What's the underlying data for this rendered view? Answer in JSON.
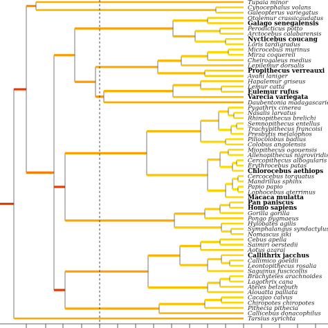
{
  "tree": {
    "tips": [
      {
        "label": "Tupaia minor",
        "bold": false
      },
      {
        "label": "Cynocephalus volans",
        "bold": false
      },
      {
        "label": "Galeopterus variegatus",
        "bold": false
      },
      {
        "label": "Otolemur crassicaudatus",
        "bold": false
      },
      {
        "label": "Galago senegalensis",
        "bold": true
      },
      {
        "label": "Perodicticus potto",
        "bold": false
      },
      {
        "label": "Arctocebus calabarensis",
        "bold": false
      },
      {
        "label": "Nycticebus coucang",
        "bold": true
      },
      {
        "label": "Loris tardigradus",
        "bold": false
      },
      {
        "label": "Microcebus murinus",
        "bold": false
      },
      {
        "label": "Mirza coquereli",
        "bold": false
      },
      {
        "label": "Cheirogaleus medius",
        "bold": false
      },
      {
        "label": "Lepilemur dorsalis",
        "bold": false
      },
      {
        "label": "Propithecus verreauxi",
        "bold": true
      },
      {
        "label": "Avahi laniger",
        "bold": false
      },
      {
        "label": "Hapalemur griseus",
        "bold": false
      },
      {
        "label": "Lemur catta",
        "bold": false
      },
      {
        "label": "Eulemur rufus",
        "bold": true
      },
      {
        "label": "Varecia variegata",
        "bold": true
      },
      {
        "label": "Daubentonia madagascariensis",
        "bold": false
      },
      {
        "label": "Pygathrix cinerea",
        "bold": false
      },
      {
        "label": "Nasalis larvatus",
        "bold": false
      },
      {
        "label": "Rhinopithecus brelichi",
        "bold": false
      },
      {
        "label": "Semnopithecus entellus",
        "bold": false
      },
      {
        "label": "Trachypithecus francoisi",
        "bold": false
      },
      {
        "label": "Presbytis melalophos",
        "bold": false
      },
      {
        "label": "Piliocolobus badius",
        "bold": false
      },
      {
        "label": "Colobus angolensis",
        "bold": false
      },
      {
        "label": "Miopithecus ogouensis",
        "bold": false
      },
      {
        "label": "Allenopithecus nigroviridis",
        "bold": false
      },
      {
        "label": "Cercopithecus albogularis",
        "bold": false
      },
      {
        "label": "Erythrocebus patas",
        "bold": false
      },
      {
        "label": "Chlorocebus aethiops",
        "bold": true
      },
      {
        "label": "Cercocebus torquatus",
        "bold": false
      },
      {
        "label": "Mandrillus sphinx",
        "bold": false
      },
      {
        "label": "Papio papio",
        "bold": false
      },
      {
        "label": "Lophocebus aterrimus",
        "bold": false
      },
      {
        "label": "Macaca mulatta",
        "bold": true
      },
      {
        "label": "Pan paniscus",
        "bold": true
      },
      {
        "label": "Homo sapiens",
        "bold": true
      },
      {
        "label": "Gorilla gorilla",
        "bold": false
      },
      {
        "label": "Pongo pygmaeus",
        "bold": false
      },
      {
        "label": "Hylobates agilis",
        "bold": false
      },
      {
        "label": "Symphalangus syndactylus",
        "bold": false
      },
      {
        "label": "Nomascus siki",
        "bold": false
      },
      {
        "label": "Cebus apella",
        "bold": false
      },
      {
        "label": "Saimiri oerstedii",
        "bold": false
      },
      {
        "label": "Aotus azarai",
        "bold": false
      },
      {
        "label": "Callithrix jacchus",
        "bold": true
      },
      {
        "label": "Callimico goeldii",
        "bold": false
      },
      {
        "label": "Leontopithecus rosalia",
        "bold": false
      },
      {
        "label": "Saguinus fuscicollis",
        "bold": false
      },
      {
        "label": "Brachyteles arachnoides",
        "bold": false
      },
      {
        "label": "Lagothrix cana",
        "bold": false
      },
      {
        "label": "Ateles belzebuth",
        "bold": false
      },
      {
        "label": "Alouatta palliata",
        "bold": false
      },
      {
        "label": "Cacajao calvus",
        "bold": false
      },
      {
        "label": "Chiropotes chiropotes",
        "bold": false
      },
      {
        "label": "Pithecia pithecia",
        "bold": false
      },
      {
        "label": "Callicebus donacophilus",
        "bold": false
      },
      {
        "label": "Tarsius syrichta",
        "bold": false
      }
    ],
    "colors": {
      "low": "#ffe600",
      "mid": "#ff9a00",
      "high": "#dd2200",
      "line": "#555555",
      "dashed": "#333333"
    }
  }
}
